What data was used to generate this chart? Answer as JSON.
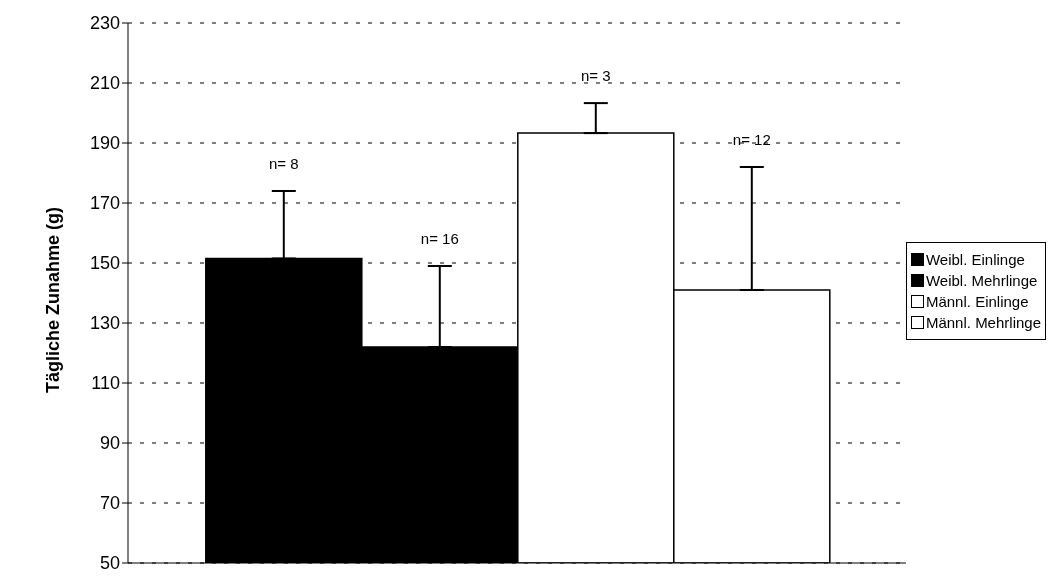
{
  "chart_data": {
    "type": "bar",
    "ylabel": "Tägliche Zunahme (g)",
    "categories": [
      null
    ],
    "series": [
      {
        "name": "Weibl. Einlinge",
        "color": "#000000",
        "values": [
          151.5
        ],
        "errors": [
          [
            151.5,
            174
          ]
        ]
      },
      {
        "name": "Weibl. Mehrlinge",
        "color": "#000000",
        "values": [
          122
        ],
        "errors": [
          [
            122,
            149
          ]
        ]
      },
      {
        "name": "Männl. Einlinge",
        "color": "#ffffff",
        "values": [
          193.3
        ],
        "errors": [
          [
            193.3,
            203.3
          ]
        ]
      },
      {
        "name": "Männl. Mehrlinge",
        "color": "#ffffff",
        "values": [
          141
        ],
        "errors": [
          [
            141,
            182
          ]
        ]
      }
    ],
    "annotations": [
      "n= 8",
      "n= 16",
      "n= 3",
      "n= 12"
    ],
    "ylim": [
      50,
      230
    ],
    "yticks": [
      50,
      70,
      90,
      110,
      130,
      150,
      170,
      190,
      210,
      230
    ],
    "grid": "y",
    "legend": "right"
  }
}
